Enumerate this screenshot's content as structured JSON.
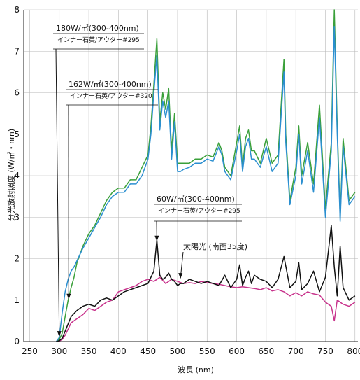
{
  "chart_data": {
    "type": "line",
    "xlabel": "波長 (nm)",
    "ylabel": "分光放射照度 (W/㎡・nm)",
    "xlim": [
      240,
      805
    ],
    "ylim": [
      0,
      8
    ],
    "x_ticks": [
      250,
      300,
      350,
      400,
      450,
      500,
      550,
      600,
      650,
      700,
      750,
      800
    ],
    "y_ticks": [
      0,
      1,
      2,
      3,
      4,
      5,
      6,
      7,
      8
    ],
    "grid": true,
    "colors": {
      "green": "#3aa03a",
      "blue": "#2b8fd0",
      "black": "#111111",
      "magenta": "#c8338c"
    },
    "annotations": [
      {
        "label": "180W/㎡(300-400nm)",
        "sub": "インナー石英/アウター#295",
        "series": "green"
      },
      {
        "label": "162W/㎡(300-400nm)",
        "sub": "インナー石英/アウター#320",
        "series": "blue"
      },
      {
        "label": "60W/㎡(300-400nm)",
        "sub": "インナー石英/アウター#295",
        "series": "black"
      },
      {
        "label": "太陽光 (南面35度)",
        "sub": "",
        "series": "magenta"
      }
    ],
    "series": [
      {
        "key": "green",
        "x": [
          295,
          300,
          305,
          310,
          315,
          320,
          325,
          330,
          340,
          350,
          360,
          370,
          380,
          390,
          400,
          410,
          420,
          430,
          440,
          450,
          455,
          460,
          465,
          470,
          475,
          480,
          485,
          490,
          495,
          500,
          505,
          510,
          520,
          530,
          540,
          550,
          560,
          570,
          575,
          580,
          590,
          600,
          605,
          610,
          615,
          620,
          625,
          630,
          640,
          650,
          660,
          670,
          680,
          683,
          690,
          700,
          705,
          710,
          720,
          730,
          740,
          750,
          760,
          765,
          770,
          775,
          780,
          790,
          800
        ],
        "y": [
          0.0,
          0.05,
          0.2,
          0.6,
          1.0,
          1.3,
          1.55,
          1.9,
          2.3,
          2.6,
          2.8,
          3.1,
          3.4,
          3.6,
          3.7,
          3.7,
          3.9,
          3.9,
          4.2,
          4.5,
          5.2,
          6.2,
          7.3,
          5.3,
          6.0,
          5.6,
          6.1,
          4.6,
          5.5,
          4.3,
          4.3,
          4.3,
          4.3,
          4.4,
          4.4,
          4.5,
          4.45,
          4.8,
          4.6,
          4.2,
          4.0,
          4.8,
          5.2,
          4.2,
          4.9,
          5.1,
          4.6,
          4.6,
          4.3,
          4.9,
          4.3,
          4.5,
          6.8,
          5.0,
          3.4,
          4.2,
          5.2,
          4.0,
          4.8,
          3.8,
          5.7,
          3.2,
          4.8,
          8.0,
          5.2,
          3.0,
          4.9,
          3.4,
          3.6
        ]
      },
      {
        "key": "blue",
        "x": [
          295,
          300,
          305,
          310,
          315,
          320,
          325,
          330,
          340,
          350,
          360,
          370,
          380,
          390,
          400,
          410,
          420,
          430,
          440,
          450,
          455,
          460,
          465,
          470,
          475,
          480,
          485,
          490,
          495,
          500,
          505,
          510,
          520,
          530,
          540,
          550,
          560,
          570,
          575,
          580,
          590,
          600,
          605,
          610,
          615,
          620,
          625,
          630,
          640,
          650,
          660,
          670,
          680,
          683,
          690,
          700,
          705,
          710,
          720,
          730,
          740,
          750,
          760,
          765,
          770,
          775,
          780,
          790,
          800
        ],
        "y": [
          0.0,
          0.1,
          0.7,
          1.2,
          1.5,
          1.7,
          1.8,
          1.95,
          2.25,
          2.5,
          2.75,
          3.0,
          3.3,
          3.5,
          3.6,
          3.6,
          3.8,
          3.8,
          4.0,
          4.4,
          5.0,
          6.0,
          6.9,
          5.1,
          5.8,
          5.4,
          5.8,
          4.4,
          5.3,
          4.1,
          4.1,
          4.15,
          4.2,
          4.3,
          4.3,
          4.4,
          4.35,
          4.7,
          4.5,
          4.1,
          3.9,
          4.6,
          5.0,
          4.1,
          4.7,
          4.9,
          4.4,
          4.4,
          4.2,
          4.7,
          4.1,
          4.3,
          6.5,
          4.8,
          3.3,
          4.0,
          5.0,
          3.8,
          4.6,
          3.6,
          5.4,
          3.0,
          4.6,
          7.6,
          5.0,
          2.9,
          4.7,
          3.3,
          3.5
        ]
      },
      {
        "key": "black",
        "x": [
          295,
          300,
          305,
          310,
          320,
          330,
          340,
          350,
          360,
          370,
          380,
          390,
          400,
          410,
          420,
          430,
          440,
          450,
          455,
          460,
          465,
          470,
          475,
          480,
          485,
          490,
          495,
          500,
          505,
          510,
          520,
          530,
          540,
          550,
          560,
          570,
          580,
          590,
          600,
          605,
          610,
          615,
          620,
          625,
          630,
          640,
          650,
          660,
          670,
          680,
          690,
          700,
          705,
          710,
          720,
          730,
          740,
          750,
          760,
          765,
          770,
          775,
          780,
          790,
          800
        ],
        "y": [
          0.0,
          0.02,
          0.08,
          0.25,
          0.6,
          0.75,
          0.85,
          0.9,
          0.85,
          1.0,
          1.05,
          1.0,
          1.1,
          1.2,
          1.25,
          1.3,
          1.35,
          1.4,
          1.55,
          1.7,
          2.45,
          1.6,
          1.5,
          1.55,
          1.65,
          1.5,
          1.45,
          1.35,
          1.4,
          1.4,
          1.5,
          1.45,
          1.4,
          1.45,
          1.4,
          1.35,
          1.6,
          1.3,
          1.5,
          1.85,
          1.35,
          1.55,
          1.7,
          1.4,
          1.6,
          1.5,
          1.45,
          1.3,
          1.5,
          2.05,
          1.3,
          1.45,
          1.9,
          1.25,
          1.4,
          1.7,
          1.2,
          1.55,
          2.8,
          1.8,
          1.1,
          2.3,
          1.3,
          1.0,
          1.1
        ]
      },
      {
        "key": "magenta",
        "x": [
          295,
          300,
          305,
          310,
          320,
          330,
          340,
          350,
          360,
          370,
          380,
          390,
          400,
          410,
          420,
          430,
          440,
          450,
          460,
          470,
          480,
          490,
          500,
          510,
          520,
          530,
          540,
          550,
          560,
          570,
          580,
          590,
          600,
          610,
          620,
          630,
          640,
          650,
          660,
          670,
          680,
          690,
          700,
          710,
          720,
          730,
          740,
          750,
          760,
          765,
          770,
          780,
          790,
          800
        ],
        "y": [
          0.0,
          0.01,
          0.05,
          0.15,
          0.45,
          0.55,
          0.65,
          0.8,
          0.75,
          0.85,
          0.95,
          1.0,
          1.2,
          1.25,
          1.3,
          1.35,
          1.45,
          1.5,
          1.45,
          1.55,
          1.4,
          1.5,
          1.45,
          1.4,
          1.42,
          1.4,
          1.45,
          1.42,
          1.4,
          1.38,
          1.35,
          1.32,
          1.3,
          1.32,
          1.3,
          1.28,
          1.25,
          1.3,
          1.22,
          1.25,
          1.2,
          1.1,
          1.18,
          1.1,
          1.2,
          1.15,
          1.12,
          0.95,
          0.85,
          0.5,
          1.0,
          0.9,
          0.85,
          0.95
        ]
      }
    ]
  }
}
